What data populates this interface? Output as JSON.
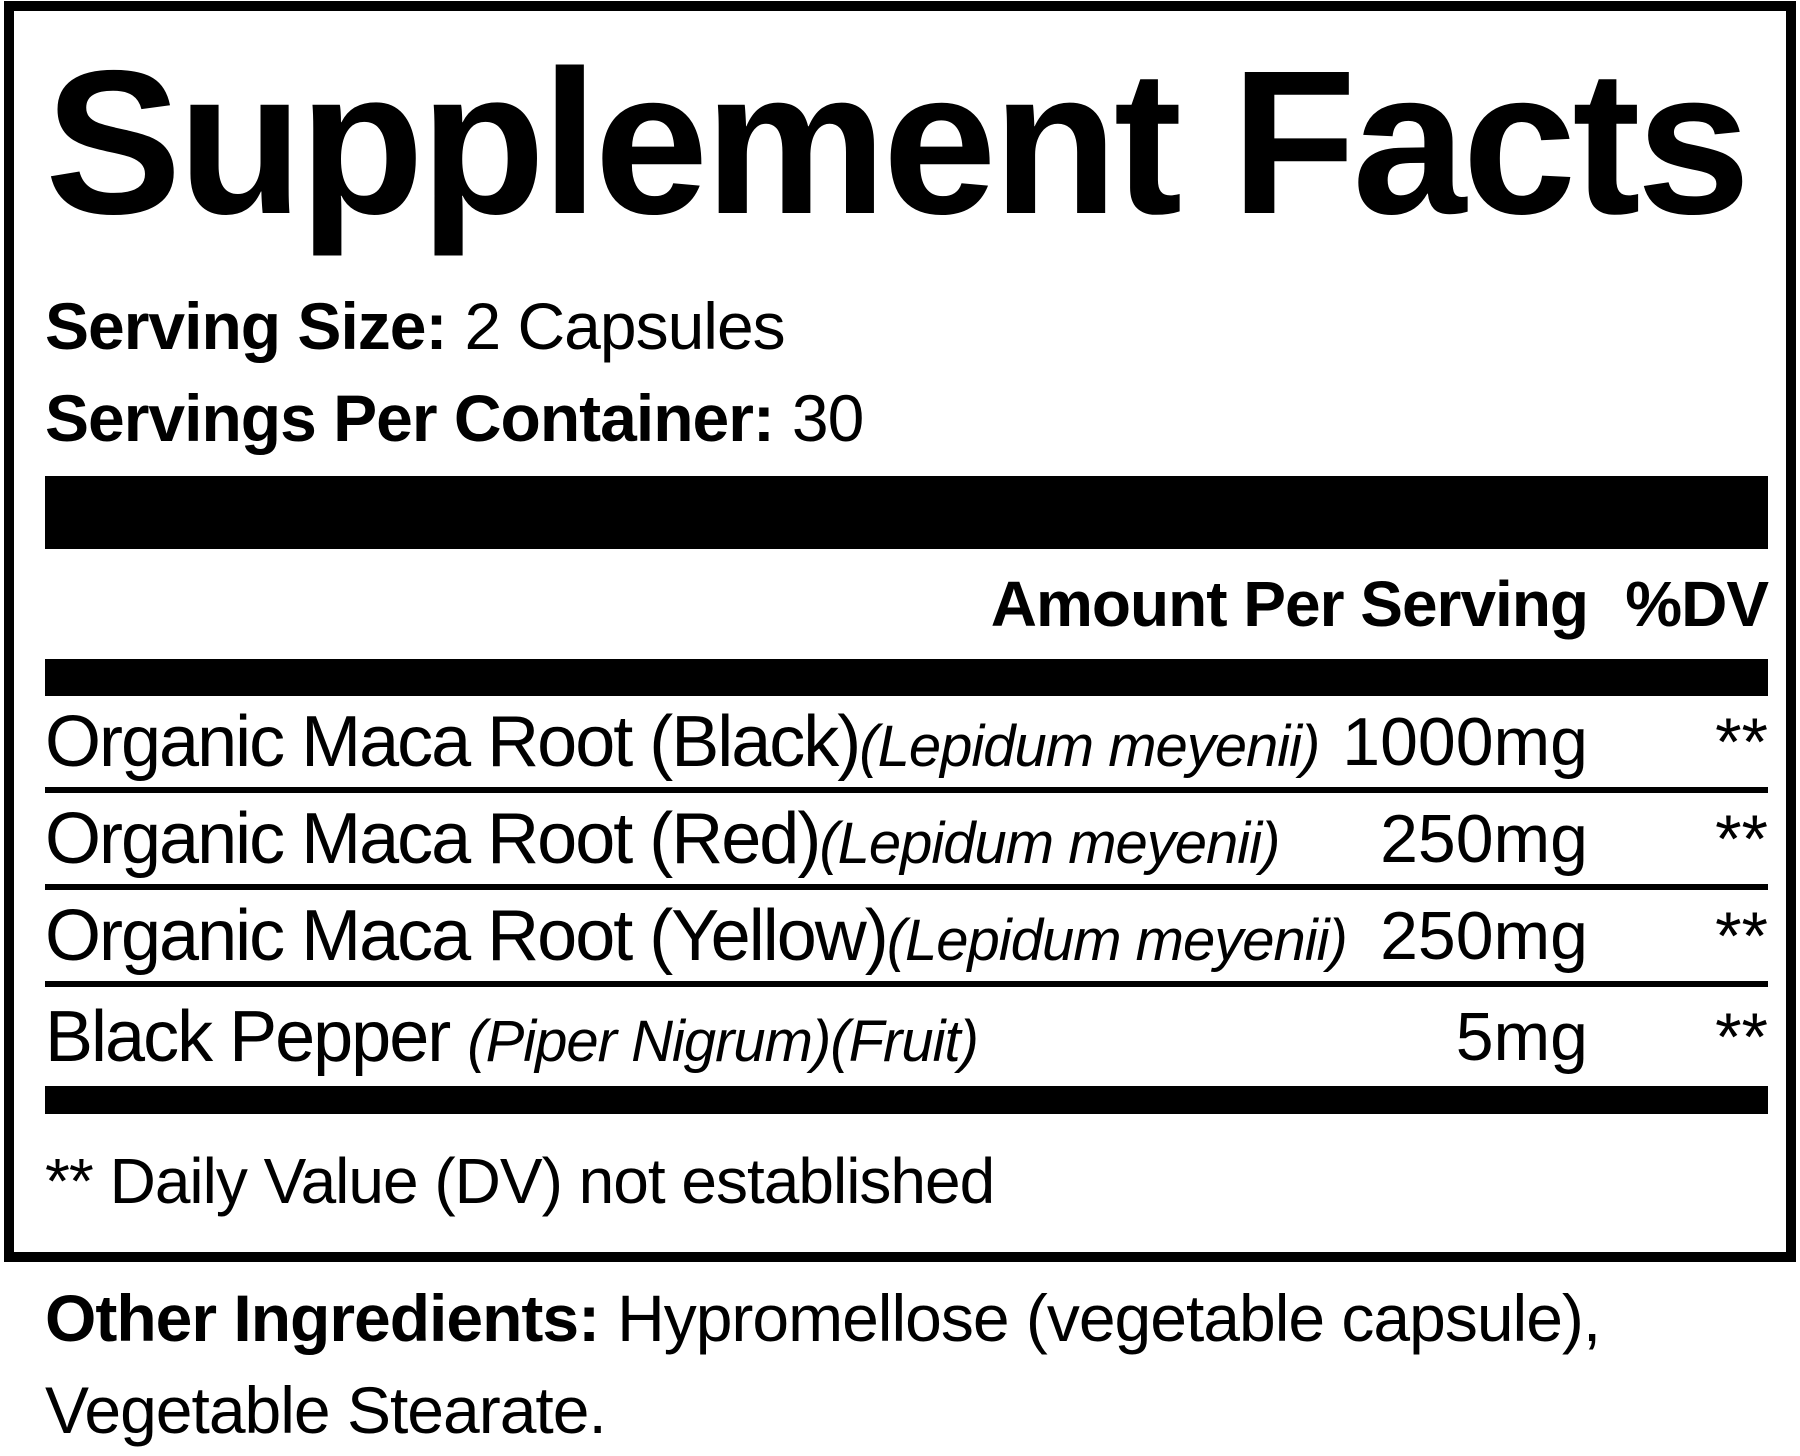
{
  "label": {
    "title": "Supplement Facts",
    "serving_size_label": "Serving Size:",
    "serving_size_value": "2 Capsules",
    "servings_per_container_label": "Servings Per Container:",
    "servings_per_container_value": "30",
    "header": {
      "amount": "Amount Per Serving",
      "dv": "%DV"
    },
    "rows": [
      {
        "name": "Organic Maca Root (Black)",
        "latin": "(Lepidum meyenii)",
        "amount": "1000mg",
        "dv": "**"
      },
      {
        "name": "Organic Maca Root (Red)",
        "latin": "(Lepidum meyenii)",
        "amount": "250mg",
        "dv": "**"
      },
      {
        "name": "Organic Maca Root (Yellow)",
        "latin": "(Lepidum meyenii)",
        "amount": "250mg",
        "dv": "**"
      },
      {
        "name": "Black Pepper ",
        "latin": "(Piper Nigrum)(Fruit)",
        "amount": "5mg",
        "dv": "**"
      }
    ],
    "footnote": "** Daily Value (DV) not established",
    "other_ingredients": {
      "label": "Other Ingredients:",
      "line1": "Hypromellose (vegetable capsule),",
      "line2": "Vegetable Stearate."
    },
    "colors": {
      "text": "#000000",
      "background": "#ffffff"
    }
  }
}
